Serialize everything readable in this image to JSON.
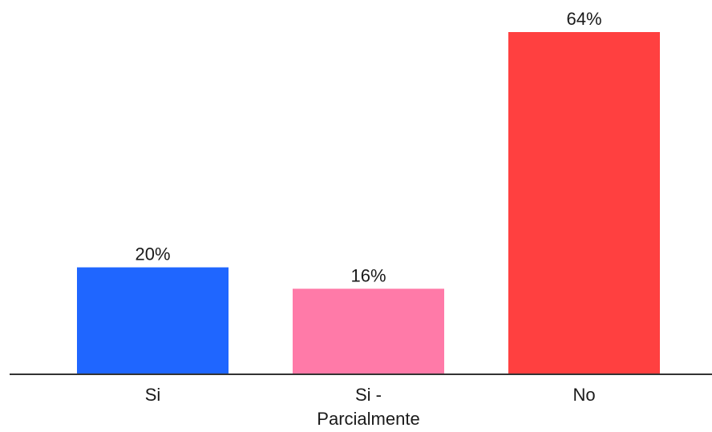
{
  "chart_data": {
    "type": "bar",
    "categories": [
      [
        "Si"
      ],
      [
        "Si -",
        "Parcialmente"
      ],
      [
        "No"
      ]
    ],
    "values": [
      20,
      16,
      64
    ],
    "value_labels": [
      "20%",
      "16%",
      "64%"
    ],
    "unit": "%",
    "colors": [
      "#1f66ff",
      "#ff7aa8",
      "#ff4040"
    ],
    "title": "",
    "xlabel": "",
    "ylabel": "",
    "ylim": [
      0,
      64
    ],
    "grid": false,
    "legend": "none"
  }
}
